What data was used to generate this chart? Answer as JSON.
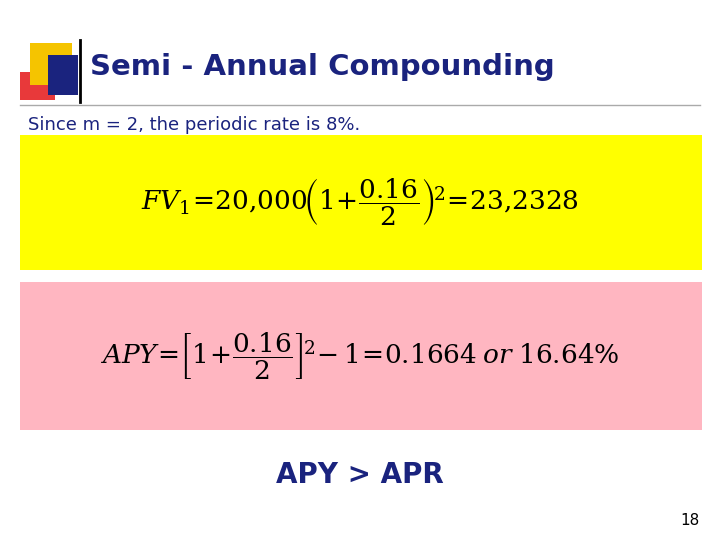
{
  "title": "Semi - Annual Compounding",
  "title_color": "#1a237e",
  "subtitle": "Since m = 2, the periodic rate is 8%.",
  "subtitle_color": "#1a237e",
  "bottom_text": "APY > APR",
  "bottom_color": "#1a237e",
  "page_number": "18",
  "bg_color": "#ffffff",
  "fv_box_color": "#ffff00",
  "apy_box_color": "#ffb6c1",
  "header_yellow": "#f5c400",
  "header_red": "#e8393a",
  "header_blue": "#1a237e",
  "line_color": "#aaaaaa"
}
